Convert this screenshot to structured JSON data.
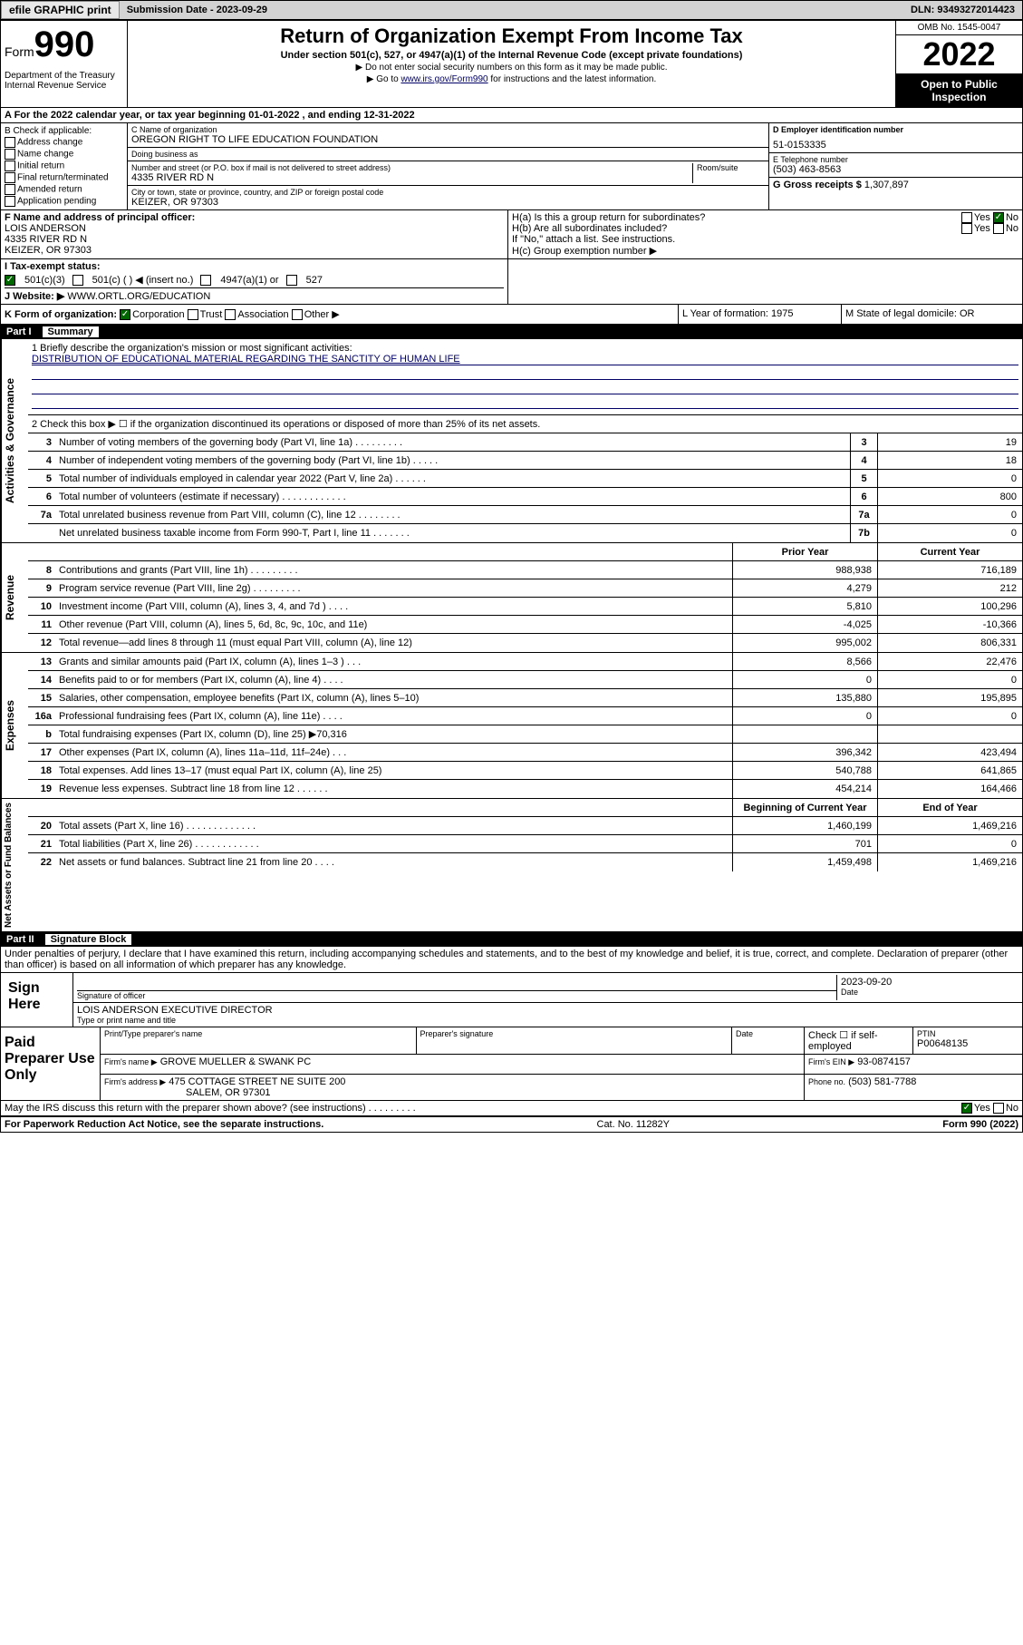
{
  "topbar": {
    "efile": "efile GRAPHIC print",
    "sub_label": "Submission Date - 2023-09-29",
    "dln": "DLN: 93493272014423"
  },
  "header": {
    "form_label": "Form",
    "form_num": "990",
    "dept": "Department of the Treasury Internal Revenue Service",
    "title": "Return of Organization Exempt From Income Tax",
    "subtitle": "Under section 501(c), 527, or 4947(a)(1) of the Internal Revenue Code (except private foundations)",
    "instr1": "▶ Do not enter social security numbers on this form as it may be made public.",
    "instr2_pre": "▶ Go to ",
    "instr2_link": "www.irs.gov/Form990",
    "instr2_post": " for instructions and the latest information.",
    "omb": "OMB No. 1545-0047",
    "year": "2022",
    "open": "Open to Public Inspection"
  },
  "row_a": "A For the 2022 calendar year, or tax year beginning 01-01-2022   , and ending 12-31-2022",
  "col_b": {
    "hdr": "B Check if applicable:",
    "items": [
      "Address change",
      "Name change",
      "Initial return",
      "Final return/terminated",
      "Amended return",
      "Application pending"
    ]
  },
  "col_c": {
    "name_lbl": "C Name of organization",
    "name": "OREGON RIGHT TO LIFE EDUCATION FOUNDATION",
    "dba_lbl": "Doing business as",
    "addr_lbl": "Number and street (or P.O. box if mail is not delivered to street address)",
    "room_lbl": "Room/suite",
    "addr": "4335 RIVER RD N",
    "city_lbl": "City or town, state or province, country, and ZIP or foreign postal code",
    "city": "KEIZER, OR  97303"
  },
  "col_de": {
    "d_lbl": "D Employer identification number",
    "d_val": "51-0153335",
    "e_lbl": "E Telephone number",
    "e_val": "(503) 463-8563",
    "g_lbl": "G Gross receipts $",
    "g_val": "1,307,897"
  },
  "row_f": {
    "lbl": "F Name and address of principal officer:",
    "name": "LOIS ANDERSON",
    "addr1": "4335 RIVER RD N",
    "addr2": "KEIZER, OR  97303"
  },
  "row_h": {
    "ha": "H(a)  Is this a group return for subordinates?",
    "hb": "H(b)  Are all subordinates included?",
    "hb_note": "If \"No,\" attach a list. See instructions.",
    "hc": "H(c)  Group exemption number ▶"
  },
  "row_i": {
    "lbl": "I    Tax-exempt status:",
    "opts": [
      "501(c)(3)",
      "501(c) (   ) ◀ (insert no.)",
      "4947(a)(1) or",
      "527"
    ]
  },
  "row_j": {
    "lbl": "J    Website: ▶",
    "val": "WWW.ORTL.ORG/EDUCATION"
  },
  "row_k": {
    "lbl": "K Form of organization:",
    "opts": [
      "Corporation",
      "Trust",
      "Association",
      "Other ▶"
    ]
  },
  "row_l": "L Year of formation: 1975",
  "row_m": "M State of legal domicile: OR",
  "part1": {
    "num": "Part I",
    "title": "Summary"
  },
  "mission": {
    "lbl": "1   Briefly describe the organization's mission or most significant activities:",
    "text": "DISTRIBUTION OF EDUCATIONAL MATERIAL REGARDING THE SANCTITY OF HUMAN LIFE"
  },
  "line2": "2   Check this box ▶ ☐ if the organization discontinued its operations or disposed of more than 25% of its net assets.",
  "sections": {
    "gov": {
      "label": "Activities & Governance",
      "rows": [
        {
          "n": "3",
          "t": "Number of voting members of the governing body (Part VI, line 1a)  .   .   .   .   .   .   .   .   .",
          "b": "3",
          "v": "19"
        },
        {
          "n": "4",
          "t": "Number of independent voting members of the governing body (Part VI, line 1b)  .   .   .   .   .",
          "b": "4",
          "v": "18"
        },
        {
          "n": "5",
          "t": "Total number of individuals employed in calendar year 2022 (Part V, line 2a)  .   .   .   .   .   .",
          "b": "5",
          "v": "0"
        },
        {
          "n": "6",
          "t": "Total number of volunteers (estimate if necessary)  .   .   .   .   .   .   .   .   .   .   .   .",
          "b": "6",
          "v": "800"
        },
        {
          "n": "7a",
          "t": "Total unrelated business revenue from Part VIII, column (C), line 12  .   .   .   .   .   .   .   .",
          "b": "7a",
          "v": "0"
        },
        {
          "n": "",
          "t": "Net unrelated business taxable income from Form 990-T, Part I, line 11  .   .   .   .   .   .   .",
          "b": "7b",
          "v": "0"
        }
      ]
    },
    "rev": {
      "label": "Revenue",
      "hdr": {
        "py": "Prior Year",
        "cy": "Current Year"
      },
      "rows": [
        {
          "n": "8",
          "t": "Contributions and grants (Part VIII, line 1h)  .   .   .   .   .   .   .   .   .",
          "py": "988,938",
          "cy": "716,189"
        },
        {
          "n": "9",
          "t": "Program service revenue (Part VIII, line 2g)  .   .   .   .   .   .   .   .   .",
          "py": "4,279",
          "cy": "212"
        },
        {
          "n": "10",
          "t": "Investment income (Part VIII, column (A), lines 3, 4, and 7d )  .   .   .   .",
          "py": "5,810",
          "cy": "100,296"
        },
        {
          "n": "11",
          "t": "Other revenue (Part VIII, column (A), lines 5, 6d, 8c, 9c, 10c, and 11e)",
          "py": "-4,025",
          "cy": "-10,366"
        },
        {
          "n": "12",
          "t": "Total revenue—add lines 8 through 11 (must equal Part VIII, column (A), line 12)",
          "py": "995,002",
          "cy": "806,331"
        }
      ]
    },
    "exp": {
      "label": "Expenses",
      "rows": [
        {
          "n": "13",
          "t": "Grants and similar amounts paid (Part IX, column (A), lines 1–3 )  .   .   .",
          "py": "8,566",
          "cy": "22,476"
        },
        {
          "n": "14",
          "t": "Benefits paid to or for members (Part IX, column (A), line 4)  .   .   .   .",
          "py": "0",
          "cy": "0"
        },
        {
          "n": "15",
          "t": "Salaries, other compensation, employee benefits (Part IX, column (A), lines 5–10)",
          "py": "135,880",
          "cy": "195,895"
        },
        {
          "n": "16a",
          "t": "Professional fundraising fees (Part IX, column (A), line 11e)  .   .   .   .",
          "py": "0",
          "cy": "0"
        },
        {
          "n": "b",
          "t": "Total fundraising expenses (Part IX, column (D), line 25) ▶70,316",
          "py": "",
          "cy": ""
        },
        {
          "n": "17",
          "t": "Other expenses (Part IX, column (A), lines 11a–11d, 11f–24e)  .   .   .",
          "py": "396,342",
          "cy": "423,494"
        },
        {
          "n": "18",
          "t": "Total expenses. Add lines 13–17 (must equal Part IX, column (A), line 25)",
          "py": "540,788",
          "cy": "641,865"
        },
        {
          "n": "19",
          "t": "Revenue less expenses. Subtract line 18 from line 12  .   .   .   .   .   .",
          "py": "454,214",
          "cy": "164,466"
        }
      ]
    },
    "net": {
      "label": "Net Assets or Fund Balances",
      "hdr": {
        "py": "Beginning of Current Year",
        "cy": "End of Year"
      },
      "rows": [
        {
          "n": "20",
          "t": "Total assets (Part X, line 16)  .   .   .   .   .   .   .   .   .   .   .   .   .",
          "py": "1,460,199",
          "cy": "1,469,216"
        },
        {
          "n": "21",
          "t": "Total liabilities (Part X, line 26)  .   .   .   .   .   .   .   .   .   .   .   .",
          "py": "701",
          "cy": "0"
        },
        {
          "n": "22",
          "t": "Net assets or fund balances. Subtract line 21 from line 20  .   .   .   .",
          "py": "1,459,498",
          "cy": "1,469,216"
        }
      ]
    }
  },
  "part2": {
    "num": "Part II",
    "title": "Signature Block"
  },
  "sig_decl": "Under penalties of perjury, I declare that I have examined this return, including accompanying schedules and statements, and to the best of my knowledge and belief, it is true, correct, and complete. Declaration of preparer (other than officer) is based on all information of which preparer has any knowledge.",
  "sign": {
    "here": "Sign Here",
    "sig_lbl": "Signature of officer",
    "date": "2023-09-20",
    "date_lbl": "Date",
    "name": "LOIS ANDERSON  EXECUTIVE DIRECTOR",
    "name_lbl": "Type or print name and title"
  },
  "prep": {
    "hdr": "Paid Preparer Use Only",
    "cols": [
      "Print/Type preparer's name",
      "Preparer's signature",
      "Date"
    ],
    "check": "Check ☐ if self-employed",
    "ptin_lbl": "PTIN",
    "ptin": "P00648135",
    "firm_lbl": "Firm's name    ▶",
    "firm": "GROVE MUELLER & SWANK PC",
    "ein_lbl": "Firm's EIN ▶",
    "ein": "93-0874157",
    "addr_lbl": "Firm's address ▶",
    "addr": "475 COTTAGE STREET NE SUITE 200",
    "addr2": "SALEM, OR  97301",
    "phone_lbl": "Phone no.",
    "phone": "(503) 581-7788"
  },
  "discuss": "May the IRS discuss this return with the preparer shown above? (see instructions)  .   .   .   .   .   .   .   .   .",
  "footer": {
    "left": "For Paperwork Reduction Act Notice, see the separate instructions.",
    "mid": "Cat. No. 11282Y",
    "right": "Form 990 (2022)"
  }
}
